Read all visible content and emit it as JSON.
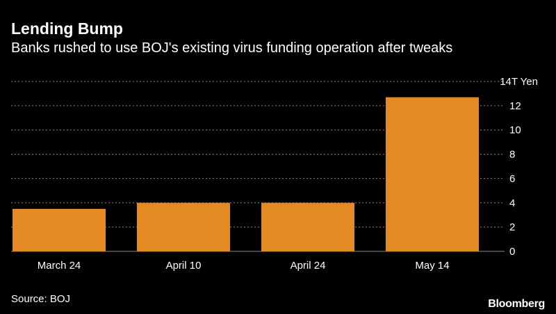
{
  "header": {
    "title": "Lending Bump",
    "subtitle": "Banks rushed to use BOJ's existing virus funding operation after tweaks"
  },
  "footer": {
    "source": "Source: BOJ",
    "brand": "Bloomberg"
  },
  "colors": {
    "background": "#000000",
    "bar": "#e38a24",
    "grid": "#8a8a8a",
    "text": "#ffffff"
  },
  "chart_data": {
    "type": "bar",
    "categories": [
      "March 24",
      "April 10",
      "April 24",
      "May 14"
    ],
    "values": [
      3.5,
      4.0,
      4.0,
      12.7
    ],
    "ylim": [
      0,
      14
    ],
    "yticks": [
      0,
      2,
      4,
      6,
      8,
      10,
      12
    ],
    "ytick_labels": [
      "0",
      "2",
      "4",
      "6",
      "8",
      "10",
      "12"
    ],
    "top_tick_label": "14T Yen",
    "y_axis_position": "right",
    "grid": true
  }
}
